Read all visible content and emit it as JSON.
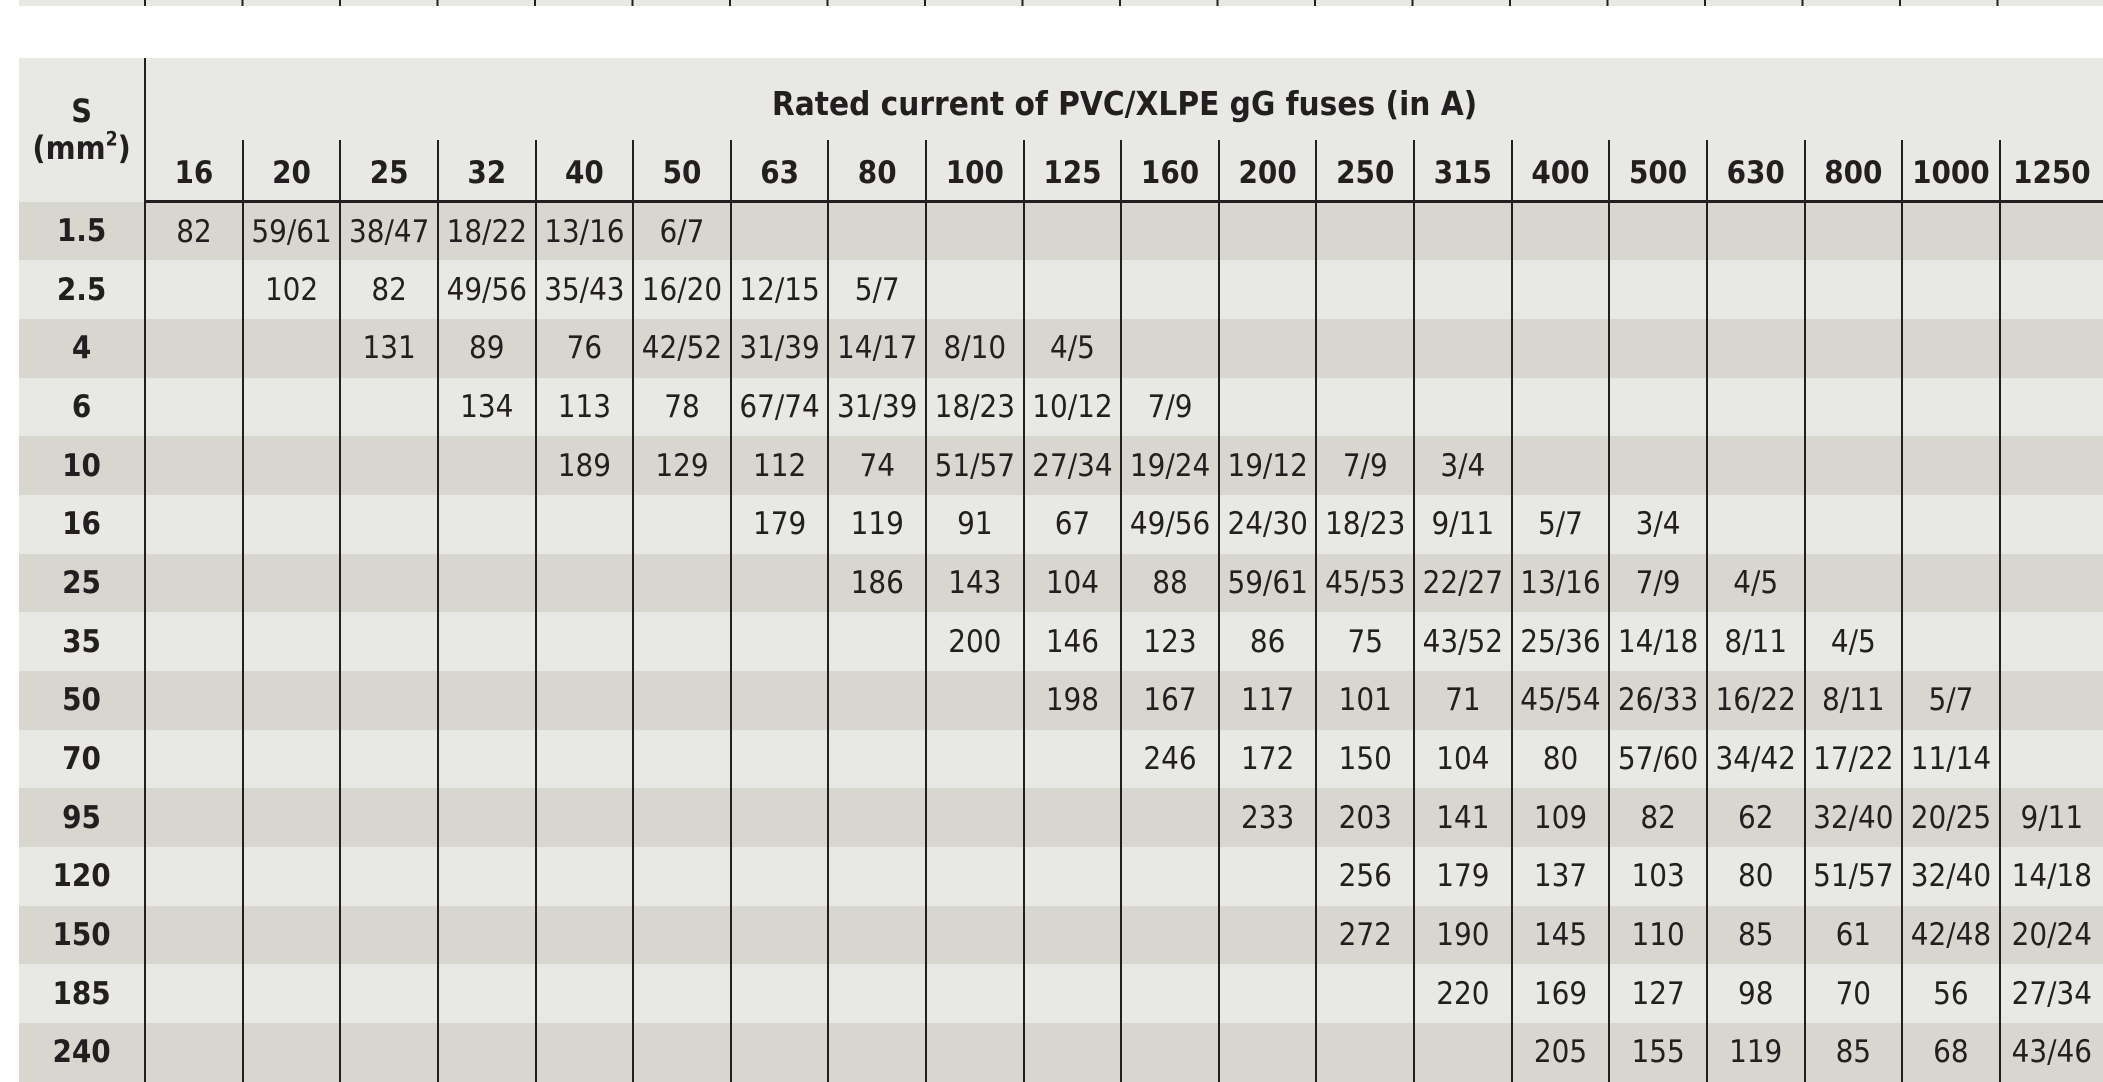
{
  "colors": {
    "header_background": "#e8e8e4",
    "band_dark": "#d8d7cf",
    "band_light": "#e8e8e4",
    "rule": "#231f20",
    "text": "#231f20"
  },
  "table": {
    "row_header_label": "S",
    "row_header_unit_base": "(mm",
    "row_header_unit_exp": "2",
    "row_header_unit_close": ")",
    "column_group_title": "Rated current of PVC/XLPE gG fuses (in A)",
    "fuse_ratings": [
      "16",
      "20",
      "25",
      "32",
      "40",
      "50",
      "63",
      "80",
      "100",
      "125",
      "160",
      "200",
      "250",
      "315",
      "400",
      "500",
      "630",
      "800",
      "1000",
      "1250"
    ],
    "rows": [
      {
        "s": "1.5",
        "cells": [
          "82",
          "59/61",
          "38/47",
          "18/22",
          "13/16",
          "6/7",
          "",
          "",
          "",
          "",
          "",
          "",
          "",
          "",
          "",
          "",
          "",
          "",
          "",
          ""
        ]
      },
      {
        "s": "2.5",
        "cells": [
          "",
          "102",
          "82",
          "49/56",
          "35/43",
          "16/20",
          "12/15",
          "5/7",
          "",
          "",
          "",
          "",
          "",
          "",
          "",
          "",
          "",
          "",
          "",
          ""
        ]
      },
      {
        "s": "4",
        "cells": [
          "",
          "",
          "131",
          "89",
          "76",
          "42/52",
          "31/39",
          "14/17",
          "8/10",
          "4/5",
          "",
          "",
          "",
          "",
          "",
          "",
          "",
          "",
          "",
          ""
        ]
      },
      {
        "s": "6",
        "cells": [
          "",
          "",
          "",
          "134",
          "113",
          "78",
          "67/74",
          "31/39",
          "18/23",
          "10/12",
          "7/9",
          "",
          "",
          "",
          "",
          "",
          "",
          "",
          "",
          ""
        ]
      },
      {
        "s": "10",
        "cells": [
          "",
          "",
          "",
          "",
          "189",
          "129",
          "112",
          "74",
          "51/57",
          "27/34",
          "19/24",
          "19/12",
          "7/9",
          "3/4",
          "",
          "",
          "",
          "",
          "",
          ""
        ]
      },
      {
        "s": "16",
        "cells": [
          "",
          "",
          "",
          "",
          "",
          "",
          "179",
          "119",
          "91",
          "67",
          "49/56",
          "24/30",
          "18/23",
          "9/11",
          "5/7",
          "3/4",
          "",
          "",
          "",
          ""
        ]
      },
      {
        "s": "25",
        "cells": [
          "",
          "",
          "",
          "",
          "",
          "",
          "",
          "186",
          "143",
          "104",
          "88",
          "59/61",
          "45/53",
          "22/27",
          "13/16",
          "7/9",
          "4/5",
          "",
          "",
          ""
        ]
      },
      {
        "s": "35",
        "cells": [
          "",
          "",
          "",
          "",
          "",
          "",
          "",
          "",
          "200",
          "146",
          "123",
          "86",
          "75",
          "43/52",
          "25/36",
          "14/18",
          "8/11",
          "4/5",
          "",
          ""
        ]
      },
      {
        "s": "50",
        "cells": [
          "",
          "",
          "",
          "",
          "",
          "",
          "",
          "",
          "",
          "198",
          "167",
          "117",
          "101",
          "71",
          "45/54",
          "26/33",
          "16/22",
          "8/11",
          "5/7",
          ""
        ]
      },
      {
        "s": "70",
        "cells": [
          "",
          "",
          "",
          "",
          "",
          "",
          "",
          "",
          "",
          "",
          "246",
          "172",
          "150",
          "104",
          "80",
          "57/60",
          "34/42",
          "17/22",
          "11/14",
          ""
        ]
      },
      {
        "s": "95",
        "cells": [
          "",
          "",
          "",
          "",
          "",
          "",
          "",
          "",
          "",
          "",
          "",
          "233",
          "203",
          "141",
          "109",
          "82",
          "62",
          "32/40",
          "20/25",
          "9/11"
        ]
      },
      {
        "s": "120",
        "cells": [
          "",
          "",
          "",
          "",
          "",
          "",
          "",
          "",
          "",
          "",
          "",
          "",
          "256",
          "179",
          "137",
          "103",
          "80",
          "51/57",
          "32/40",
          "14/18"
        ]
      },
      {
        "s": "150",
        "cells": [
          "",
          "",
          "",
          "",
          "",
          "",
          "",
          "",
          "",
          "",
          "",
          "",
          "272",
          "190",
          "145",
          "110",
          "85",
          "61",
          "42/48",
          "20/24"
        ]
      },
      {
        "s": "185",
        "cells": [
          "",
          "",
          "",
          "",
          "",
          "",
          "",
          "",
          "",
          "",
          "",
          "",
          "",
          "220",
          "169",
          "127",
          "98",
          "70",
          "56",
          "27/34"
        ]
      },
      {
        "s": "240",
        "cells": [
          "",
          "",
          "",
          "",
          "",
          "",
          "",
          "",
          "",
          "",
          "",
          "",
          "",
          "",
          "205",
          "155",
          "119",
          "85",
          "68",
          "43/46"
        ]
      }
    ]
  }
}
